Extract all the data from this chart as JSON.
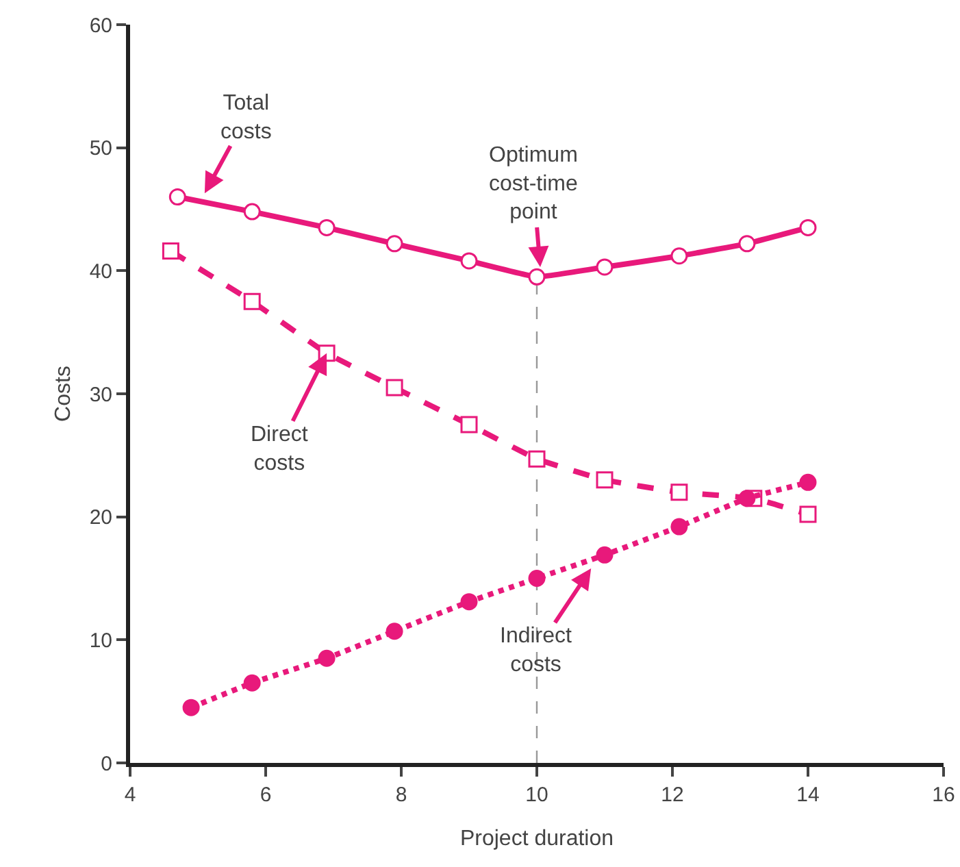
{
  "chart_data": {
    "type": "line",
    "xlabel": "Project duration",
    "ylabel": "Costs",
    "xlim": [
      4,
      16
    ],
    "ylim": [
      0,
      60
    ],
    "xticks": [
      4,
      6,
      8,
      10,
      12,
      14,
      16
    ],
    "yticks": [
      0,
      10,
      20,
      30,
      40,
      50,
      60
    ],
    "grid": false,
    "series": [
      {
        "color": "#e8197b",
        "marker": "circle",
        "line_style": "solid",
        "x": [
          4.7,
          5.8,
          6.9,
          7.9,
          9,
          10,
          11,
          12.1,
          13.1,
          14
        ],
        "values": [
          46,
          44.8,
          43.5,
          42.2,
          40.8,
          39.5,
          40.3,
          41.2,
          42.2,
          43.5
        ]
      },
      {
        "color": "#e8197b",
        "marker": "square",
        "line_style": "dashed",
        "x": [
          4.6,
          5.8,
          6.9,
          7.9,
          9,
          10,
          11,
          12.1,
          13.2,
          14
        ],
        "values": [
          41.6,
          37.5,
          33.3,
          30.5,
          27.5,
          24.7,
          23,
          22,
          21.5,
          20.2
        ]
      },
      {
        "color": "#e8197b",
        "marker": "circle",
        "line_style": "dotted",
        "x": [
          4.9,
          5.8,
          6.9,
          7.9,
          9,
          10,
          11,
          12.1,
          13.1,
          14
        ],
        "values": [
          4.5,
          6.5,
          8.5,
          10.7,
          13.1,
          15,
          16.9,
          19.2,
          21.5,
          22.8
        ]
      }
    ],
    "ref_lines": [
      {
        "axis": "x",
        "value": 10,
        "color": "#999999",
        "line_style": "dashed"
      }
    ],
    "annotations": [
      {
        "text": "Total\ncosts",
        "x": 5.1,
        "y": 46.3
      },
      {
        "text": "Optimum\ncost-time\npoint",
        "x": 10.05,
        "y": 40.3
      },
      {
        "text": "Direct\ncosts",
        "x": 6.9,
        "y": 33.3
      },
      {
        "text": "Indirect\ncosts",
        "x": 10.8,
        "y": 15.8
      }
    ]
  }
}
